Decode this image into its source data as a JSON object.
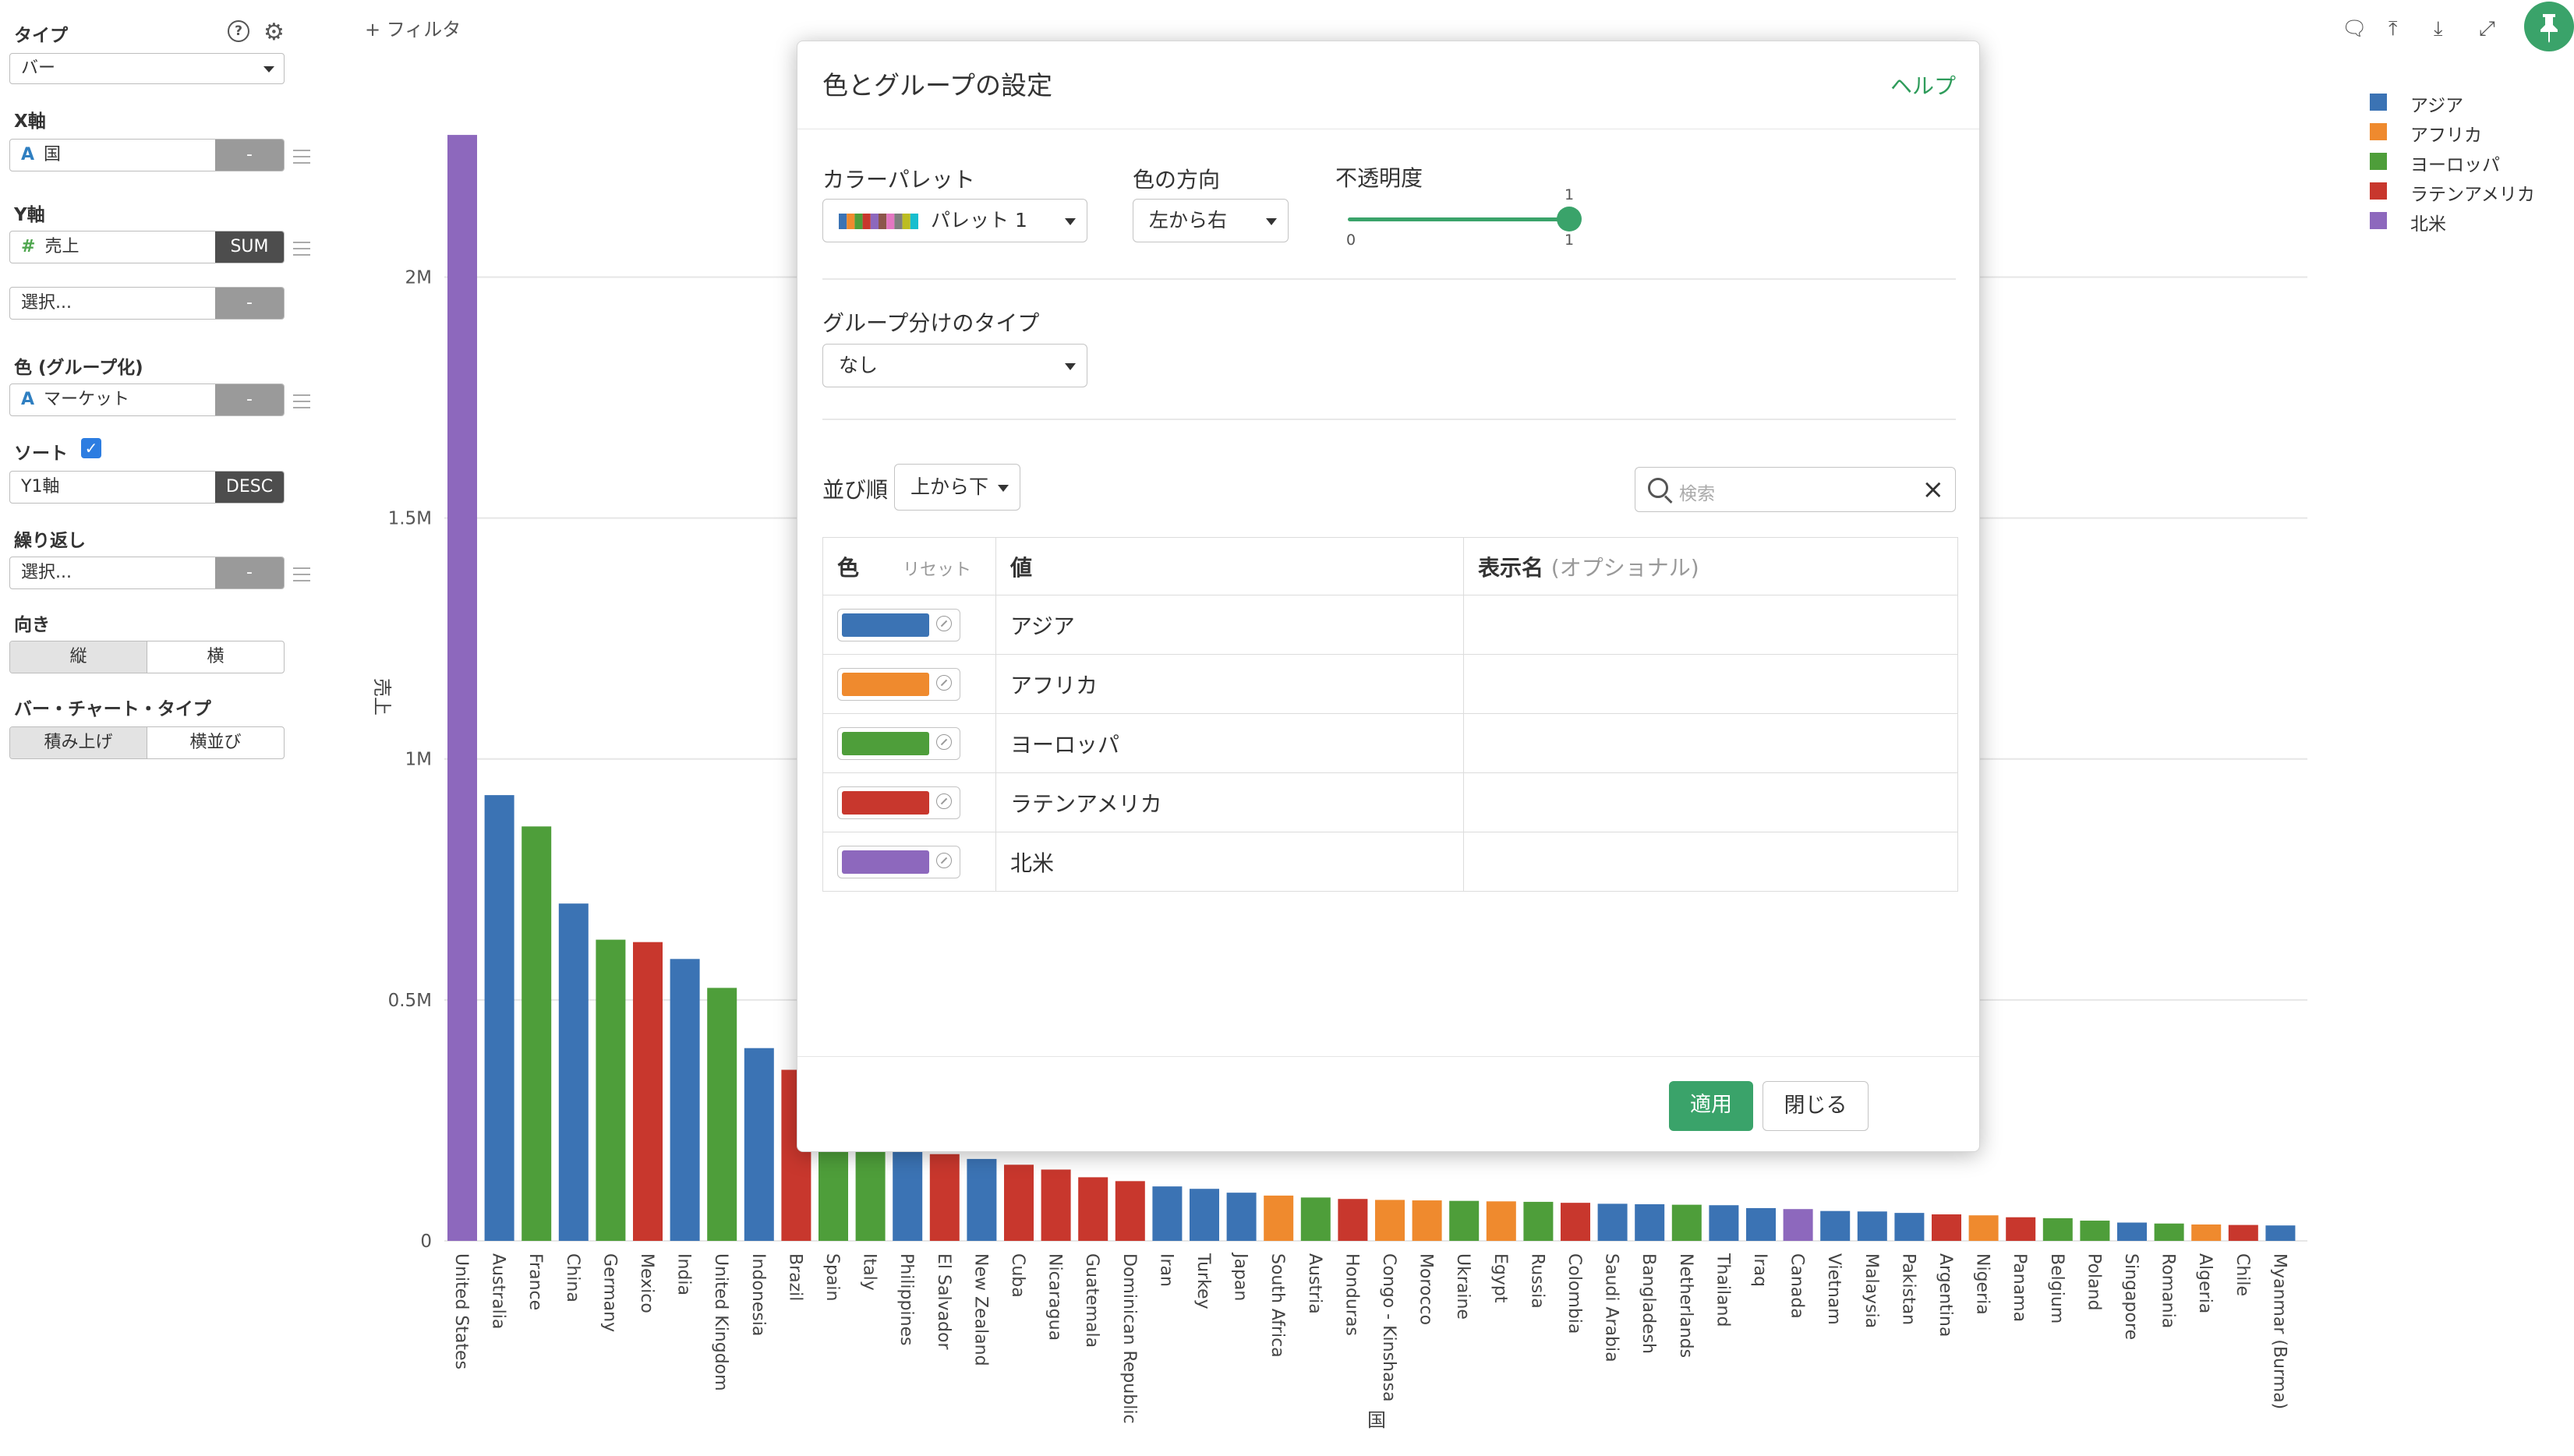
{
  "filter_label": "+ フィルタ",
  "left_panel": {
    "type_label": "タイプ",
    "type_value": "バー",
    "x_axis_label": "X軸",
    "x_axis_field": "国",
    "x_axis_agg": "-",
    "y_axis_label": "Y軸",
    "y_axis_field": "売上",
    "y_axis_agg": "SUM",
    "y_axis_extra": "選択...",
    "y_axis_extra_agg": "-",
    "color_label": "色 (グループ化)",
    "color_field": "マーケット",
    "color_agg": "-",
    "sort_label": "ソート",
    "sort_field": "Y1軸",
    "sort_order": "DESC",
    "repeat_label": "繰り返し",
    "repeat_field": "選択...",
    "repeat_agg": "-",
    "orientation_label": "向き",
    "orientation_options": [
      "縦",
      "横"
    ],
    "bar_type_label": "バー・チャート・タイプ",
    "bar_type_options": [
      "積み上げ",
      "横並び"
    ]
  },
  "legend": [
    {
      "label": "アジア",
      "color": "#3b73b4"
    },
    {
      "label": "アフリカ",
      "color": "#ef8a2e"
    },
    {
      "label": "ヨーロッパ",
      "color": "#4e9e3a"
    },
    {
      "label": "ラテンアメリカ",
      "color": "#c8372d"
    },
    {
      "label": "北米",
      "color": "#8d68bd"
    }
  ],
  "chart_data": {
    "type": "bar",
    "ylabel": "売上",
    "xlabel": "国",
    "ylim": [
      0,
      2300000
    ],
    "yticks": [
      0,
      500000,
      1000000,
      1500000,
      2000000
    ],
    "ytick_labels": [
      "0",
      "0.5M",
      "1M",
      "1.5M",
      "2M"
    ],
    "categories": [
      "United States",
      "Australia",
      "France",
      "China",
      "Germany",
      "Mexico",
      "India",
      "United Kingdom",
      "Indonesia",
      "Brazil",
      "Spain",
      "Italy",
      "Philippines",
      "El Salvador",
      "New Zealand",
      "Cuba",
      "Nicaragua",
      "Guatemala",
      "Dominican Republic",
      "Iran",
      "Turkey",
      "Japan",
      "South Africa",
      "Austria",
      "Honduras",
      "Congo - Kinshasa",
      "Morocco",
      "Ukraine",
      "Egypt",
      "Russia",
      "Colombia",
      "Saudi Arabia",
      "Bangladesh",
      "Netherlands",
      "Thailand",
      "Iraq",
      "Canada",
      "Vietnam",
      "Malaysia",
      "Pakistan",
      "Argentina",
      "Nigeria",
      "Panama",
      "Belgium",
      "Poland",
      "Singapore",
      "Romania",
      "Algeria",
      "Chile",
      "Myanmar (Burma)"
    ],
    "values": [
      2295000,
      925000,
      860000,
      700000,
      625000,
      620000,
      585000,
      525000,
      400000,
      355000,
      345000,
      345000,
      250000,
      180000,
      170000,
      158000,
      148000,
      132000,
      124000,
      113000,
      108000,
      100000,
      94000,
      90000,
      87000,
      85000,
      84000,
      83000,
      82000,
      81000,
      79000,
      77000,
      76000,
      75000,
      74000,
      68000,
      66000,
      62000,
      61000,
      58000,
      55000,
      53000,
      49000,
      47000,
      42000,
      38000,
      36000,
      34000,
      33000,
      32000
    ],
    "markets": [
      "北米",
      "アジア",
      "ヨーロッパ",
      "アジア",
      "ヨーロッパ",
      "ラテンアメリカ",
      "アジア",
      "ヨーロッパ",
      "アジア",
      "ラテンアメリカ",
      "ヨーロッパ",
      "ヨーロッパ",
      "アジア",
      "ラテンアメリカ",
      "アジア",
      "ラテンアメリカ",
      "ラテンアメリカ",
      "ラテンアメリカ",
      "ラテンアメリカ",
      "アジア",
      "アジア",
      "アジア",
      "アフリカ",
      "ヨーロッパ",
      "ラテンアメリカ",
      "アフリカ",
      "アフリカ",
      "ヨーロッパ",
      "アフリカ",
      "ヨーロッパ",
      "ラテンアメリカ",
      "アジア",
      "アジア",
      "ヨーロッパ",
      "アジア",
      "アジア",
      "北米",
      "アジア",
      "アジア",
      "アジア",
      "ラテンアメリカ",
      "アフリカ",
      "ラテンアメリカ",
      "ヨーロッパ",
      "ヨーロッパ",
      "アジア",
      "ヨーロッパ",
      "アフリカ",
      "ラテンアメリカ",
      "アジア"
    ]
  },
  "modal": {
    "title": "色とグループの設定",
    "help": "ヘルプ",
    "palette_label": "カラーパレット",
    "palette_value": "パレット 1",
    "palette_colors": [
      "#3b73b4",
      "#ef8a2e",
      "#4e9e3a",
      "#c8372d",
      "#8d68bd",
      "#8c564b",
      "#e377c2",
      "#7f7f7f",
      "#bcbd22",
      "#17becf"
    ],
    "direction_label": "色の方向",
    "direction_value": "左から右",
    "opacity_label": "不透明度",
    "opacity_value": 1,
    "opacity_value_label": "1",
    "opacity_min": "0",
    "opacity_max": "1",
    "group_type_label": "グループ分けのタイプ",
    "group_type_value": "なし",
    "order_label": "並び順",
    "order_value": "上から下",
    "search_placeholder": "検索",
    "table": {
      "col_color": "色",
      "col_reset": "リセット",
      "col_value": "値",
      "col_display": "表示名",
      "col_display_optional": "(オプショナル)",
      "rows": [
        {
          "value": "アジア",
          "color": "#3b73b4",
          "display": ""
        },
        {
          "value": "アフリカ",
          "color": "#ef8a2e",
          "display": ""
        },
        {
          "value": "ヨーロッパ",
          "color": "#4e9e3a",
          "display": ""
        },
        {
          "value": "ラテンアメリカ",
          "color": "#c8372d",
          "display": ""
        },
        {
          "value": "北米",
          "color": "#8d68bd",
          "display": ""
        }
      ]
    },
    "apply": "適用",
    "close": "閉じる"
  }
}
